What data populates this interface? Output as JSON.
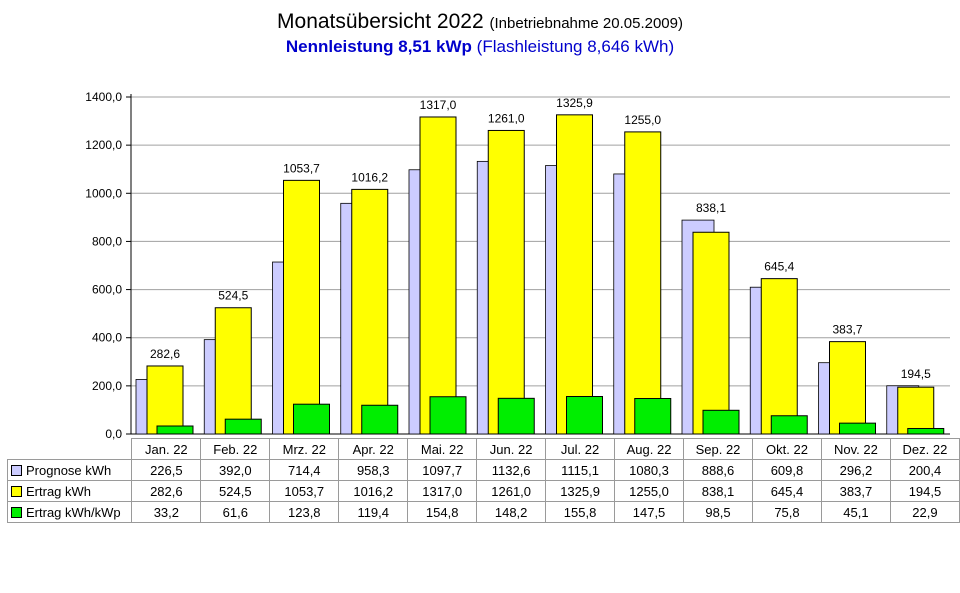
{
  "page": {
    "title": "Monatsübersicht 2022",
    "title_note": "(Inbetriebnahme  20.05.2009)",
    "subtitle_bold": "Nennleistung 8,51 kWp",
    "subtitle_rest": "(Flashleistung 8,646 kWh)"
  },
  "chart_data": {
    "type": "bar",
    "categories": [
      "Jan. 22",
      "Feb. 22",
      "Mrz. 22",
      "Apr. 22",
      "Mai. 22",
      "Jun. 22",
      "Jul. 22",
      "Aug. 22",
      "Sep. 22",
      "Okt. 22",
      "Nov. 22",
      "Dez. 22"
    ],
    "ylim": [
      0,
      1400
    ],
    "yticks": [
      "0,0",
      "200,0",
      "400,0",
      "600,0",
      "800,0",
      "1000,0",
      "1200,0",
      "1400,0"
    ],
    "grid": true,
    "legend": "table-bottom",
    "series": [
      {
        "name": "Prognose kWh",
        "color": "#ccccff",
        "values": [
          226.5,
          392.0,
          714.4,
          958.3,
          1097.7,
          1132.6,
          1115.1,
          1080.3,
          888.6,
          609.8,
          296.2,
          200.4
        ],
        "labels": [
          "226,5",
          "392,0",
          "714,4",
          "958,3",
          "1097,7",
          "1132,6",
          "1115,1",
          "1080,3",
          "888,6",
          "609,8",
          "296,2",
          "200,4"
        ]
      },
      {
        "name": "Ertrag kWh",
        "color": "#ffff00",
        "values": [
          282.6,
          524.5,
          1053.7,
          1016.2,
          1317.0,
          1261.0,
          1325.9,
          1255.0,
          838.1,
          645.4,
          383.7,
          194.5
        ],
        "labels": [
          "282,6",
          "524,5",
          "1053,7",
          "1016,2",
          "1317,0",
          "1261,0",
          "1325,9",
          "1255,0",
          "838,1",
          "645,4",
          "383,7",
          "194,5"
        ]
      },
      {
        "name": "Ertrag kWh/kWp",
        "color": "#00ee00",
        "values": [
          33.2,
          61.6,
          123.8,
          119.4,
          154.8,
          148.2,
          155.8,
          147.5,
          98.5,
          75.8,
          45.1,
          22.9
        ],
        "labels": [
          "33,2",
          "61,6",
          "123,8",
          "119,4",
          "154,8",
          "148,2",
          "155,8",
          "147,5",
          "98,5",
          "75,8",
          "45,1",
          "22,9"
        ]
      }
    ]
  }
}
